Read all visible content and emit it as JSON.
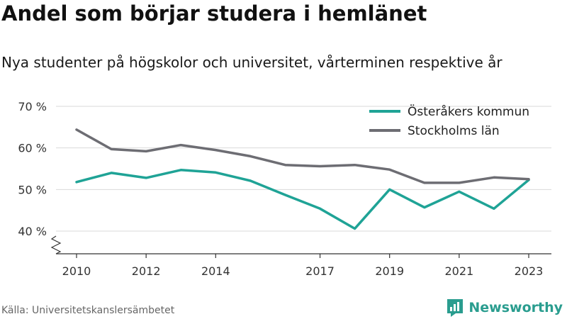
{
  "header": {
    "title": "Andel som börjar studera i hemlänet",
    "subtitle": "Nya studenter på högskolor och universitet, vårterminen respektive år"
  },
  "footer": {
    "source": "Källa: Universitetskanslersämbetet",
    "brand": "Newsworthy",
    "brand_icon": "newsworthy-logo-icon"
  },
  "chart_data": {
    "type": "line",
    "title": "Andel som börjar studera i hemlänet",
    "subtitle": "Nya studenter på högskolor och universitet, vårterminen respektive år",
    "x": [
      2010,
      2011,
      2012,
      2013,
      2014,
      2015,
      2016,
      2017,
      2018,
      2019,
      2020,
      2021,
      2022,
      2023
    ],
    "x_ticks": [
      2010,
      2012,
      2014,
      2017,
      2019,
      2021,
      2023
    ],
    "x_tick_labels": [
      "2010",
      "2012",
      "2014",
      "2017",
      "2019",
      "2021",
      "2023"
    ],
    "y_ticks": [
      40,
      50,
      60,
      70
    ],
    "y_tick_labels": [
      "40 %",
      "50 %",
      "60 %",
      "70 %"
    ],
    "ylim": [
      40,
      70
    ],
    "xlim": [
      2010,
      2023
    ],
    "y_axis_break": true,
    "grid": "horizontal",
    "legend_position": "top-right",
    "series": [
      {
        "name": "Österåkers kommun",
        "color": "#1fa396",
        "values": [
          51.8,
          54.0,
          52.8,
          54.7,
          54.1,
          52.1,
          48.7,
          45.4,
          40.6,
          50.0,
          45.7,
          49.5,
          45.4,
          52.3
        ]
      },
      {
        "name": "Stockholms län",
        "color": "#6d6d73",
        "values": [
          64.4,
          59.7,
          59.2,
          60.7,
          59.5,
          58.0,
          55.9,
          55.6,
          55.9,
          54.8,
          51.6,
          51.6,
          52.9,
          52.5
        ]
      }
    ]
  }
}
